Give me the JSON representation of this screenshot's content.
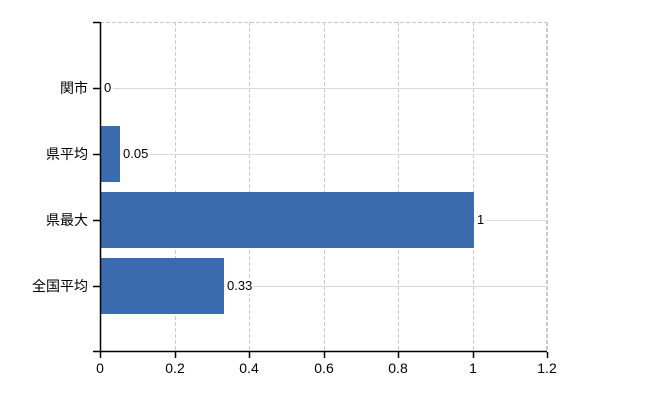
{
  "chart_data": {
    "type": "bar",
    "orientation": "horizontal",
    "title": "",
    "categories": [
      "関市",
      "県平均",
      "県最大",
      "全国平均"
    ],
    "values": [
      0,
      0.05,
      1,
      0.33
    ],
    "value_labels": [
      "0",
      "0.05",
      "1",
      "0.33"
    ],
    "x_ticks": [
      0,
      0.2,
      0.4,
      0.6,
      0.8,
      1,
      1.2
    ],
    "x_tick_labels": [
      "0",
      "0.2",
      "0.4",
      "0.6",
      "0.8",
      "1",
      "1.2"
    ],
    "xlim": [
      0,
      1.2
    ],
    "xlabel": "",
    "ylabel": "",
    "legend": null,
    "grid": "vertical-dashed, horizontal-solid-per-category, dashed top and right plot borders",
    "colors": {
      "bar": "#3a6bae",
      "solid_gridline": "#d9d9d9",
      "dashed_gridline": "#c9c9c9",
      "axis": "#000000",
      "text": "#000000",
      "background": "#ffffff"
    }
  }
}
